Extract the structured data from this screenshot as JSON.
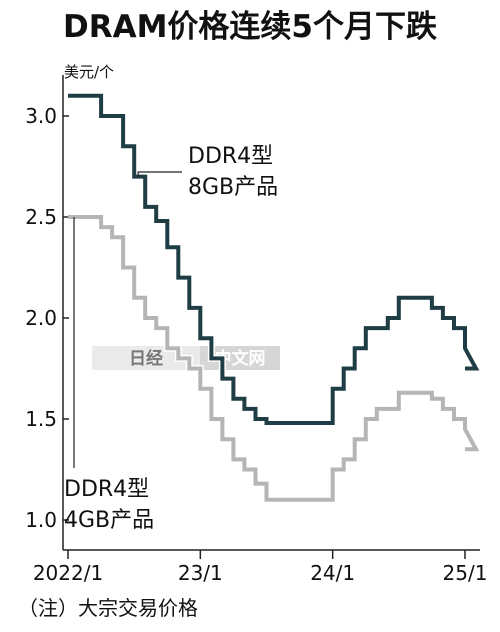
{
  "title": "DRAM价格连续5个月下跌",
  "note": "（注）大宗交易价格",
  "watermark": {
    "left": "日经",
    "right": "中文网"
  },
  "colors": {
    "series_dark": "#1f3d44",
    "series_light": "#b5b5b5",
    "axis": "#222222",
    "watermark_bg": "#d9d9d9"
  },
  "chart_data": {
    "type": "line",
    "step": true,
    "ylabel": "美元/个",
    "ylim": [
      1.0,
      3.2
    ],
    "yticks": [
      1.0,
      1.5,
      2.0,
      2.5,
      3.0
    ],
    "ytick_labels": [
      "1.0",
      "1.5",
      "2.0",
      "2.5",
      "3.0"
    ],
    "xlim": [
      0,
      36
    ],
    "xticks": [
      0,
      12,
      24,
      36
    ],
    "xtick_labels": [
      "2022/1",
      "23/1",
      "24/1",
      "25/1"
    ],
    "grid": false,
    "series": [
      {
        "name": "DDR4型 8GB产品",
        "label_lines": [
          "DDR4型",
          "8GB产品"
        ],
        "color": "#1f3d44",
        "values": [
          3.1,
          3.1,
          3.1,
          3.0,
          3.0,
          2.85,
          2.7,
          2.55,
          2.48,
          2.35,
          2.2,
          2.05,
          1.9,
          1.8,
          1.7,
          1.6,
          1.55,
          1.5,
          1.48,
          1.48,
          1.48,
          1.48,
          1.48,
          1.48,
          1.65,
          1.75,
          1.85,
          1.95,
          1.95,
          2.0,
          2.1,
          2.1,
          2.1,
          2.05,
          2.0,
          1.95,
          1.85,
          1.75
        ]
      },
      {
        "name": "DDR4型 4GB产品",
        "label_lines": [
          "DDR4型",
          "4GB产品"
        ],
        "color": "#b5b5b5",
        "values": [
          2.5,
          2.5,
          2.5,
          2.45,
          2.4,
          2.25,
          2.1,
          2.0,
          1.95,
          1.85,
          1.8,
          1.75,
          1.65,
          1.5,
          1.4,
          1.3,
          1.25,
          1.18,
          1.1,
          1.1,
          1.1,
          1.1,
          1.1,
          1.1,
          1.25,
          1.3,
          1.4,
          1.5,
          1.55,
          1.55,
          1.63,
          1.63,
          1.63,
          1.6,
          1.55,
          1.5,
          1.45,
          1.35
        ]
      }
    ]
  }
}
